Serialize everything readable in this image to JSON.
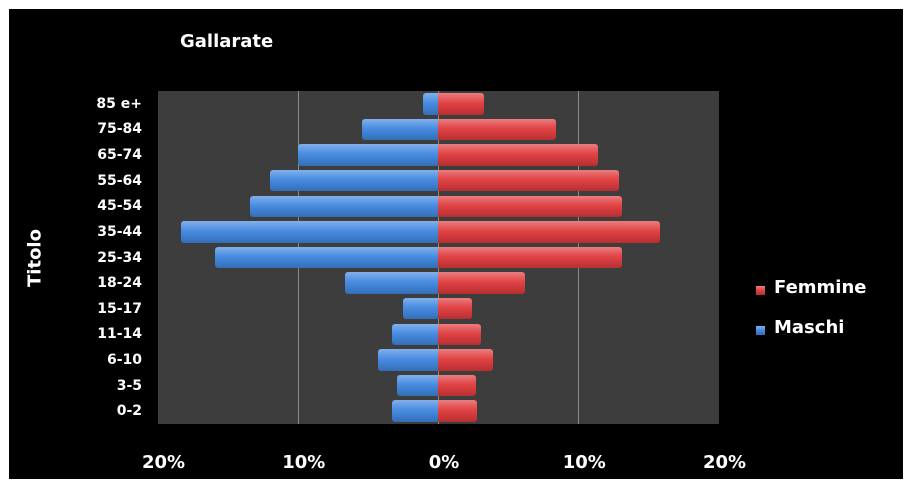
{
  "chart_data": {
    "type": "bar",
    "orientation": "horizontal",
    "title": "Gallarate",
    "ylabel": "Titolo",
    "xlabel": "",
    "x_tick_labels": [
      "20%",
      "10%",
      "0%",
      "10%",
      "20%"
    ],
    "xlim": [
      -20,
      20
    ],
    "grid": true,
    "legend_position": "right",
    "categories": [
      "85 e+",
      "75-84",
      "65-74",
      "55-64",
      "45-54",
      "35-44",
      "25-34",
      "18-24",
      "15-17",
      "11-14",
      "6-10",
      "3-5",
      "0-2"
    ],
    "series": [
      {
        "name": "Femmine",
        "color": "#e0393b",
        "values": [
          3.3,
          8.4,
          11.4,
          12.9,
          13.1,
          15.8,
          13.1,
          6.2,
          2.4,
          3.1,
          3.9,
          2.7,
          2.8
        ]
      },
      {
        "name": "Maschi",
        "color": "#3f86e0",
        "values": [
          1.1,
          5.4,
          10.0,
          12.0,
          13.4,
          18.3,
          15.9,
          6.6,
          2.5,
          3.3,
          4.3,
          2.9,
          3.3
        ]
      }
    ]
  }
}
